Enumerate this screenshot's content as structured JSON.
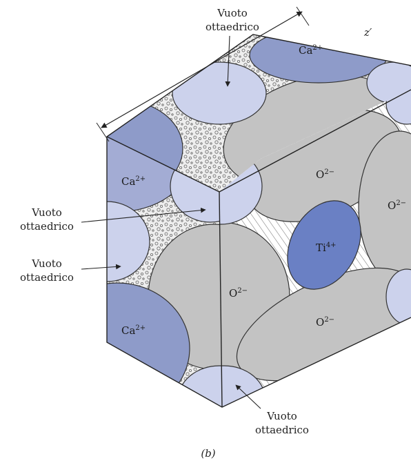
{
  "figure": {
    "caption": "(b)",
    "axis_label": "z′",
    "colors": {
      "ca_dark": "#8e9bc9",
      "ca_mid": "#a3acd4",
      "void_light": "#ccd2ec",
      "oxygen": "#c3c3c3",
      "titanium": "#6a80c4",
      "outline": "#333333"
    }
  },
  "ions": {
    "ca_top": {
      "base": "Ca",
      "charge": "2+"
    },
    "ca_left_top": {
      "base": "Ca",
      "charge": "2+"
    },
    "ca_left_bottom": {
      "base": "Ca",
      "charge": "2+"
    },
    "o_top": {
      "base": "O",
      "charge": "2−"
    },
    "o_front": {
      "base": "O",
      "charge": "2−"
    },
    "o_bottom": {
      "base": "O",
      "charge": "2−"
    },
    "o_right": {
      "base": "O",
      "charge": "2−"
    },
    "ti_center": {
      "base": "Ti",
      "charge": "4+"
    }
  },
  "annotations": {
    "top": {
      "line1": "Vuoto",
      "line2": "ottaedrico"
    },
    "left_upper": {
      "line1": "Vuoto",
      "line2": "ottaedrico"
    },
    "left_lower": {
      "line1": "Vuoto",
      "line2": "ottaedrico"
    },
    "bottom": {
      "line1": "Vuoto",
      "line2": "ottaedrico"
    }
  }
}
